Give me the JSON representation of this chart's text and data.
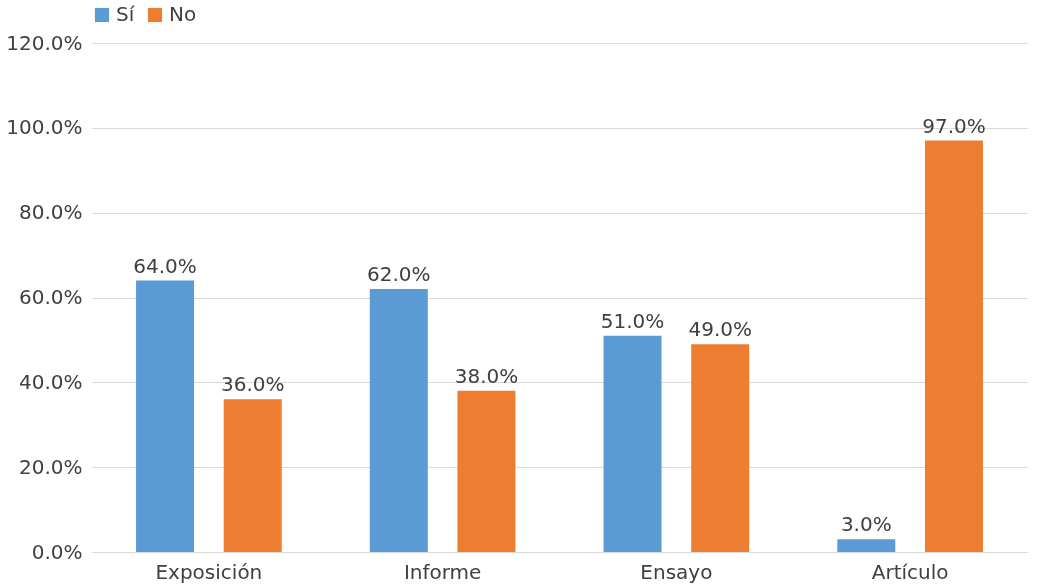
{
  "chart_data": {
    "type": "bar",
    "categories": [
      "Exposición",
      "Informe",
      "Ensayo",
      "Artículo"
    ],
    "series": [
      {
        "name": "Sí",
        "color": "#5b9bd5",
        "values": [
          64.0,
          62.0,
          51.0,
          3.0
        ],
        "value_labels": [
          "64.0%",
          "62.0%",
          "51.0%",
          "3.0%"
        ]
      },
      {
        "name": "No",
        "color": "#ed7d31",
        "values": [
          36.0,
          38.0,
          49.0,
          97.0
        ],
        "value_labels": [
          "36.0%",
          "38.0%",
          "49.0%",
          "97.0%"
        ]
      }
    ],
    "ylim": [
      0,
      120
    ],
    "yticks": [
      {
        "value": 0,
        "label": "0.0%"
      },
      {
        "value": 20,
        "label": "20.0%"
      },
      {
        "value": 40,
        "label": "40.0%"
      },
      {
        "value": 60,
        "label": "60.0%"
      },
      {
        "value": 80,
        "label": "80.0%"
      },
      {
        "value": 100,
        "label": "100.0%"
      },
      {
        "value": 120,
        "label": "120.0%"
      }
    ],
    "grid": "y",
    "legend": "top"
  }
}
